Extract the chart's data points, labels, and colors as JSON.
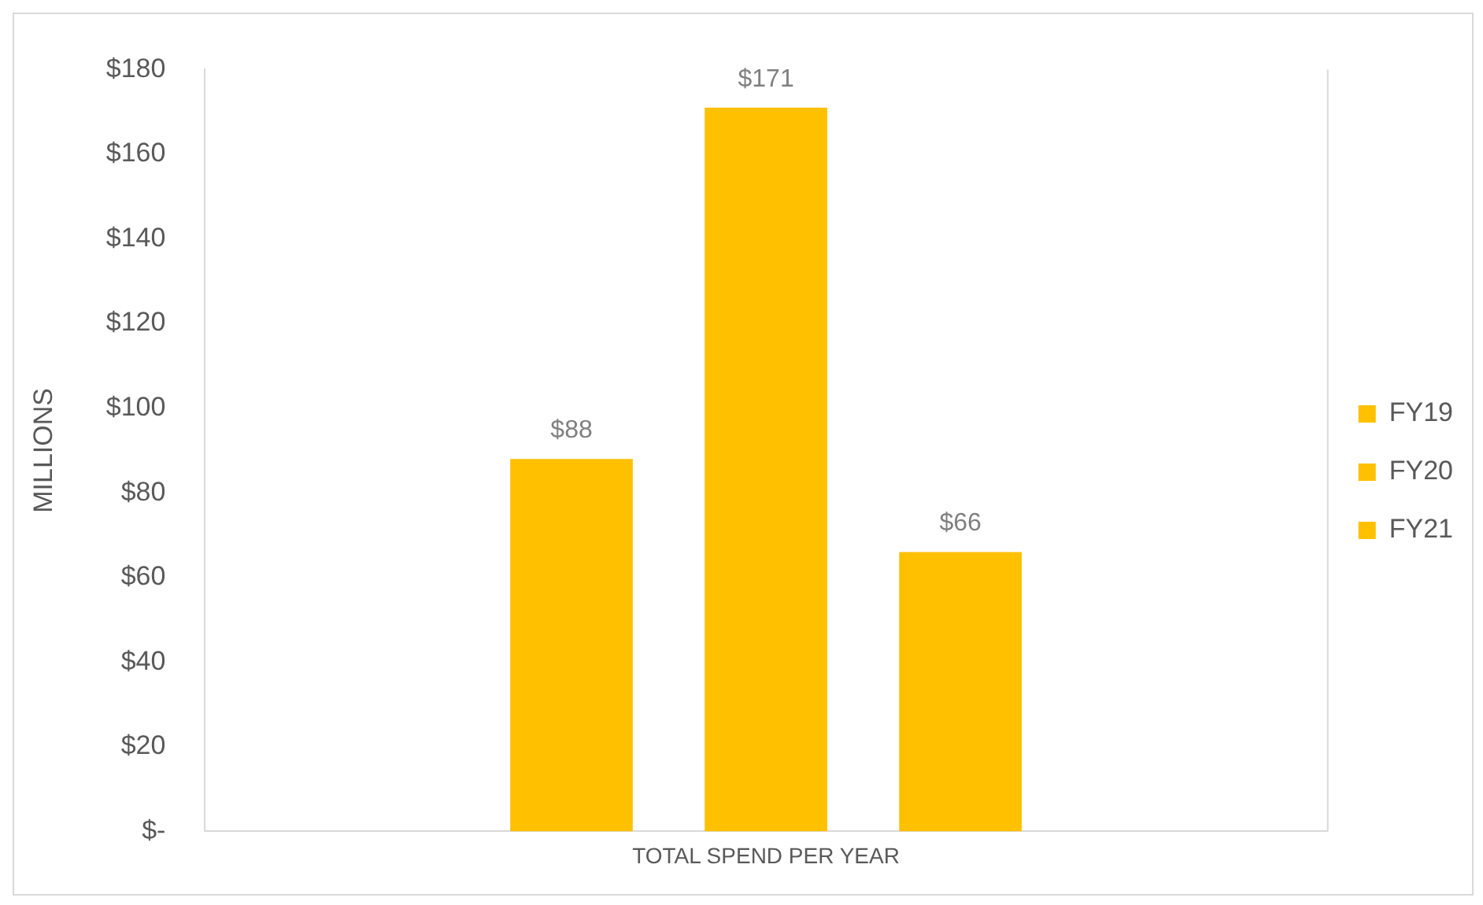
{
  "chart_data": {
    "type": "bar",
    "ylabel": "MILLIONS",
    "categories": [
      "TOTAL SPEND PER YEAR"
    ],
    "series": [
      {
        "name": "FY19",
        "color": "#ffc000",
        "values": [
          88
        ],
        "value_labels": [
          "$88"
        ]
      },
      {
        "name": "FY20",
        "color": "#ffc000",
        "values": [
          171
        ],
        "value_labels": [
          "$171"
        ]
      },
      {
        "name": "FY21",
        "color": "#ffc000",
        "values": [
          66
        ],
        "value_labels": [
          "$66"
        ]
      }
    ],
    "ylim": [
      0,
      180
    ],
    "yticks": [
      {
        "value": 0,
        "label": "$-"
      },
      {
        "value": 20,
        "label": "$20"
      },
      {
        "value": 40,
        "label": "$40"
      },
      {
        "value": 60,
        "label": "$60"
      },
      {
        "value": 80,
        "label": "$80"
      },
      {
        "value": 100,
        "label": "$100"
      },
      {
        "value": 120,
        "label": "$120"
      },
      {
        "value": 140,
        "label": "$140"
      },
      {
        "value": 160,
        "label": "$160"
      },
      {
        "value": 180,
        "label": "$180"
      }
    ],
    "grid": false,
    "legend": "right"
  }
}
